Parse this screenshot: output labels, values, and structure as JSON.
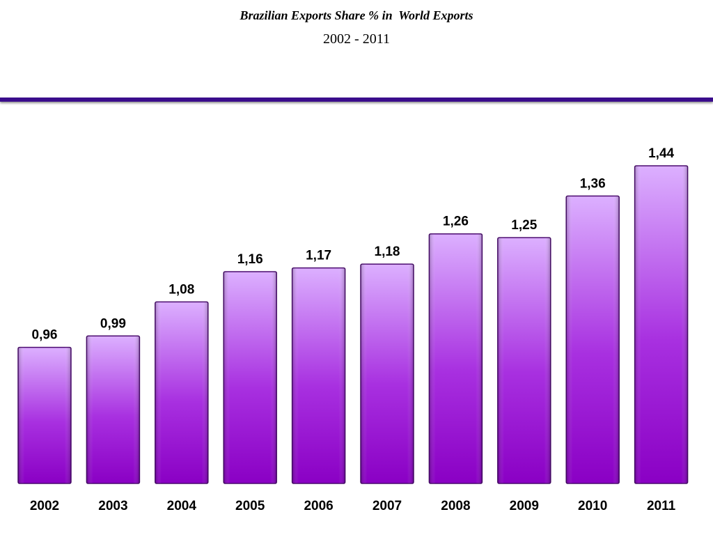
{
  "chart_data": {
    "type": "bar",
    "title": "Brazilian Exports Share % in  World Exports",
    "subtitle": "2002 - 2011",
    "categories": [
      "2002",
      "2003",
      "2004",
      "2005",
      "2006",
      "2007",
      "2008",
      "2009",
      "2010",
      "2011"
    ],
    "values": [
      0.96,
      0.99,
      1.08,
      1.16,
      1.17,
      1.18,
      1.26,
      1.25,
      1.36,
      1.44
    ],
    "data_labels": [
      "0,96",
      "0,99",
      "1,08",
      "1,16",
      "1,17",
      "1,18",
      "1,26",
      "1,25",
      "1,36",
      "1,44"
    ],
    "xlabel": "",
    "ylabel": "",
    "ylim": [
      0.6,
      1.5
    ],
    "grid": false,
    "legend": "none",
    "colors": {
      "bar_top": "#dcb0ff",
      "bar_bottom": "#8a00c4",
      "bar_edge": "#4a0a6e",
      "rule": "#3a0c8c"
    }
  }
}
